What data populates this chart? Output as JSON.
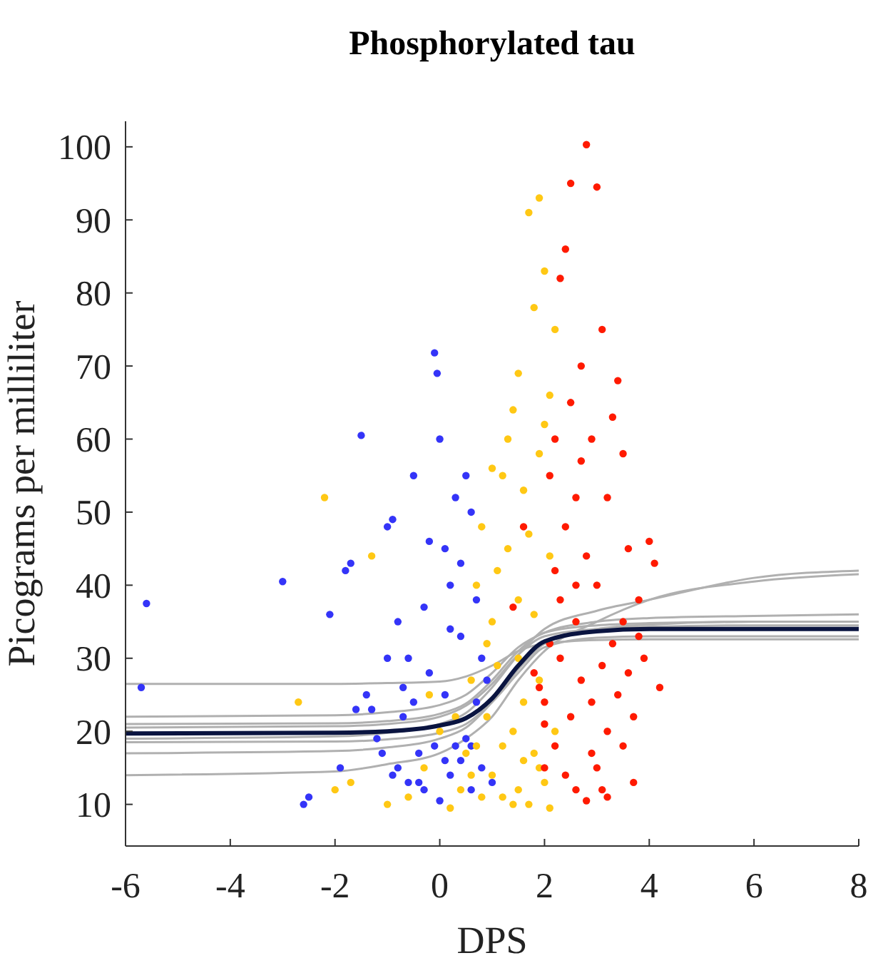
{
  "chart_data": {
    "type": "scatter",
    "title": "Phosphorylated tau",
    "xlabel": "DPS",
    "ylabel": "Picograms per milliliter",
    "xlim": [
      -6,
      8
    ],
    "xticks": [
      -6,
      -4,
      -2,
      0,
      2,
      4,
      6,
      8
    ],
    "ylim": [
      4.3,
      103.5
    ],
    "yticks": [
      10,
      20,
      30,
      40,
      50,
      60,
      70,
      80,
      90,
      100
    ],
    "grid": false,
    "series": [
      {
        "type": "line",
        "color": "#b0b0b0",
        "marker": "none",
        "x": [
          -6,
          -2,
          -1,
          0,
          0.5,
          1,
          1.5,
          2,
          3,
          4,
          6,
          8
        ],
        "values": [
          22,
          22.2,
          22.6,
          23.6,
          25,
          28,
          31.5,
          33.5,
          35,
          35.5,
          35.8,
          36
        ]
      },
      {
        "type": "line",
        "color": "#b0b0b0",
        "marker": "none",
        "x": [
          -6,
          -2,
          -1,
          0,
          0.5,
          1,
          1.5,
          2,
          3,
          4,
          6,
          8
        ],
        "values": [
          17,
          17.3,
          17.8,
          19,
          20.5,
          24,
          28.5,
          32,
          34,
          34.6,
          35,
          35
        ]
      },
      {
        "type": "line",
        "color": "#b0b0b0",
        "marker": "none",
        "x": [
          -6,
          -2,
          -1,
          0,
          0.5,
          1,
          1.5,
          2,
          3,
          4,
          6,
          8
        ],
        "values": [
          14,
          14.5,
          15.5,
          17,
          19,
          22,
          27,
          31,
          35,
          38,
          40.5,
          41.5
        ]
      },
      {
        "type": "line",
        "color": "#b0b0b0",
        "marker": "none",
        "x": [
          -6,
          -2,
          -1,
          0,
          0.5,
          1,
          1.5,
          2,
          3,
          4,
          6,
          8
        ],
        "values": [
          26.5,
          26.5,
          26.6,
          26.8,
          27.5,
          29,
          31,
          32,
          32.5,
          32.6,
          32.6,
          32.6
        ]
      },
      {
        "type": "line",
        "color": "#b0b0b0",
        "marker": "none",
        "x": [
          -6,
          -2,
          -1,
          0,
          0.5,
          1,
          1.5,
          2,
          3,
          4,
          6,
          8
        ],
        "values": [
          19,
          19.3,
          19.8,
          21,
          22.5,
          26,
          30.5,
          34,
          36.5,
          38,
          41,
          42
        ]
      },
      {
        "type": "line",
        "color": "#b0b0b0",
        "marker": "none",
        "x": [
          -6,
          -2,
          -1,
          0,
          0.5,
          1,
          1.5,
          2,
          3,
          4,
          6,
          8
        ],
        "values": [
          21,
          21.1,
          21.4,
          22.4,
          23.8,
          27,
          31,
          33.5,
          34.5,
          34.8,
          35,
          35
        ]
      },
      {
        "type": "line",
        "color": "#b0b0b0",
        "marker": "none",
        "x": [
          -6,
          -2,
          -1,
          0,
          0.5,
          1,
          1.5,
          2,
          3,
          4,
          6,
          8
        ],
        "values": [
          18.5,
          18.6,
          18.9,
          19.8,
          21,
          24,
          28,
          31.5,
          32.8,
          33,
          33,
          33
        ]
      },
      {
        "type": "line",
        "color": "#b0b0b0",
        "marker": "none",
        "x": [
          -6,
          -2,
          -1,
          0,
          0.5,
          1,
          1.5,
          2,
          3,
          4,
          6,
          8
        ],
        "values": [
          20.5,
          20.7,
          21,
          22,
          23.5,
          26.5,
          30.5,
          33,
          34,
          34.3,
          34.5,
          34.5
        ]
      },
      {
        "type": "scatter",
        "color": "#3434f8",
        "marker": "circle",
        "x": [
          -5.6,
          -5.7,
          -3,
          -2.6,
          -2.5,
          -2.1,
          -1.8,
          -1.7,
          -1.5,
          -1.4,
          -1.2,
          -1,
          -0.9,
          -0.8,
          -0.7,
          -0.6,
          -0.5,
          -0.4,
          -0.3,
          -0.2,
          -0.1,
          -0.05,
          0,
          0.1,
          0.2,
          0.3,
          0.4,
          0.5,
          0.6,
          0.7,
          0.8,
          -1.1,
          -0.9,
          -0.6,
          -0.3,
          0,
          0.2,
          0.4,
          0.6,
          0.8,
          -1.6,
          -1.3,
          -0.7,
          -0.2,
          0.1,
          0.3,
          0.5,
          0.7,
          0.9,
          1,
          -0.4,
          -0.1,
          0.2,
          0.4,
          -0.8,
          -1.9,
          -1,
          0.6,
          -0.5,
          0.1
        ],
        "values": [
          37.5,
          26,
          40.5,
          10,
          11,
          36,
          42,
          43,
          60.5,
          25,
          19,
          48,
          49,
          15,
          22,
          30,
          55,
          13,
          37,
          46,
          71.8,
          69,
          60,
          45,
          40,
          52,
          33,
          55,
          50,
          38,
          30,
          17,
          14,
          13,
          12,
          10.5,
          14,
          16,
          18,
          15,
          23,
          23,
          26,
          28,
          25,
          18,
          19,
          24,
          27,
          13,
          17,
          18,
          34,
          43,
          35,
          15,
          30,
          12,
          24,
          16
        ]
      },
      {
        "type": "scatter",
        "color": "#ffc814",
        "marker": "circle",
        "x": [
          -2.7,
          -2.2,
          -2,
          -1.7,
          -1.3,
          -1,
          -0.6,
          -0.3,
          0,
          0.2,
          0.4,
          0.5,
          0.6,
          0.7,
          0.8,
          0.9,
          1,
          1.1,
          1.2,
          1.3,
          1.4,
          1.5,
          1.6,
          1.7,
          1.8,
          1.9,
          2,
          2.1,
          2.2,
          1.5,
          1.7,
          1.9,
          2.1,
          1.2,
          1,
          0.8,
          1.4,
          1.6,
          1.8,
          2,
          1.3,
          1.5,
          1.7,
          1.9,
          2,
          1.1,
          0.9,
          1.4,
          1.6,
          0.3,
          -0.2,
          0.6,
          1.2,
          2.2,
          1.8,
          2.1,
          1,
          0.7,
          1.5,
          1.9
        ],
        "values": [
          24,
          52,
          12,
          13,
          44,
          10,
          11,
          15,
          20,
          9.5,
          12,
          17,
          27,
          40,
          48,
          22,
          35,
          42,
          55,
          60,
          64,
          69,
          53,
          91,
          78,
          93,
          83,
          66,
          75,
          12,
          10,
          15,
          9.5,
          18,
          14,
          11,
          20,
          24,
          17,
          13,
          45,
          38,
          47,
          58,
          62,
          29,
          32,
          10,
          16,
          22,
          25,
          14,
          11,
          20,
          36,
          44,
          56,
          18,
          30,
          27
        ]
      },
      {
        "type": "scatter",
        "color": "#ff1a00",
        "marker": "circle",
        "x": [
          1.4,
          1.6,
          1.8,
          2,
          2.1,
          2.2,
          2.3,
          2.4,
          2.5,
          2.6,
          2.7,
          2.8,
          2.9,
          3,
          3.1,
          3.2,
          3.3,
          3.4,
          3.5,
          3.6,
          3.8,
          4,
          4.1,
          4.2,
          3.7,
          3.5,
          3.2,
          3,
          2.8,
          2.6,
          2.4,
          2.2,
          2,
          1.9,
          2.1,
          2.3,
          2.5,
          2.7,
          2.9,
          3.1,
          3.3,
          3.5,
          3.7,
          3.9,
          2.4,
          2.6,
          2.8,
          3,
          2.2,
          2.5,
          2.7,
          3.2,
          3.4,
          3.6,
          2,
          2.9,
          3.1,
          2.3,
          2.6,
          3.8
        ],
        "values": [
          37,
          48,
          28,
          24,
          55,
          60,
          82,
          86,
          95,
          40,
          70,
          100.3,
          60,
          94.5,
          75,
          52,
          63,
          68,
          58,
          45,
          38,
          46,
          43,
          26,
          13,
          18,
          11,
          15,
          10.5,
          12,
          14,
          18,
          21,
          26,
          32,
          30,
          22,
          27,
          24,
          29,
          32,
          35,
          22,
          30,
          48,
          52,
          44,
          40,
          42,
          65,
          57,
          20,
          25,
          28,
          15,
          17,
          12,
          38,
          35,
          33
        ]
      },
      {
        "type": "line",
        "color": "#0a1440",
        "marker": "none",
        "x": [
          -6,
          -2,
          -1,
          0,
          0.5,
          1,
          1.5,
          2,
          3,
          4,
          8
        ],
        "values": [
          19.7,
          19.8,
          20,
          20.8,
          21.8,
          24.5,
          29,
          32.3,
          33.7,
          34,
          34
        ]
      }
    ]
  }
}
